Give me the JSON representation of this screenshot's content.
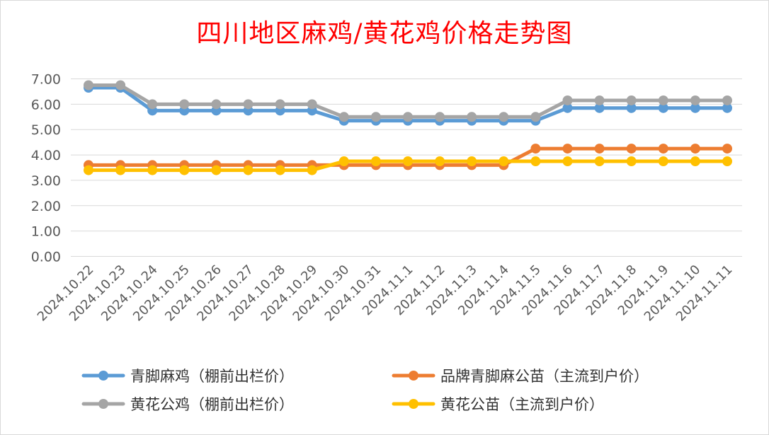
{
  "chart_data": {
    "type": "line",
    "title": "四川地区麻鸡/黄花鸡价格走势图",
    "xlabel": "",
    "ylabel": "",
    "ylim": [
      0,
      7
    ],
    "yticks": [
      "0.00",
      "1.00",
      "2.00",
      "3.00",
      "4.00",
      "5.00",
      "6.00",
      "7.00"
    ],
    "grid": true,
    "legend_position": "bottom",
    "categories": [
      "2024.10.22",
      "2024.10.23",
      "2024.10.24",
      "2024.10.25",
      "2024.10.26",
      "2024.10.27",
      "2024.10.28",
      "2024.10.29",
      "2024.10.30",
      "2024.10.31",
      "2024.11.1",
      "2024.11.2",
      "2024.11.3",
      "2024.11.4",
      "2024.11.5",
      "2024.11.6",
      "2024.11.7",
      "2024.11.8",
      "2024.11.9",
      "2024.11.10",
      "2024.11.11"
    ],
    "series": [
      {
        "name": "青脚麻鸡（棚前出栏价）",
        "color": "#5b9bd5",
        "values": [
          6.65,
          6.65,
          5.75,
          5.75,
          5.75,
          5.75,
          5.75,
          5.75,
          5.35,
          5.35,
          5.35,
          5.35,
          5.35,
          5.35,
          5.35,
          5.85,
          5.85,
          5.85,
          5.85,
          5.85,
          5.85
        ]
      },
      {
        "name": "品牌青脚麻公苗（主流到户价）",
        "color": "#ed7d31",
        "values": [
          3.6,
          3.6,
          3.6,
          3.6,
          3.6,
          3.6,
          3.6,
          3.6,
          3.6,
          3.6,
          3.6,
          3.6,
          3.6,
          3.6,
          4.25,
          4.25,
          4.25,
          4.25,
          4.25,
          4.25,
          4.25
        ]
      },
      {
        "name": "黄花公鸡（棚前出栏价）",
        "color": "#a5a5a5",
        "values": [
          6.75,
          6.75,
          6.0,
          6.0,
          6.0,
          6.0,
          6.0,
          6.0,
          5.5,
          5.5,
          5.5,
          5.5,
          5.5,
          5.5,
          5.5,
          6.15,
          6.15,
          6.15,
          6.15,
          6.15,
          6.15
        ]
      },
      {
        "name": "黄花公苗（主流到户价）",
        "color": "#ffc000",
        "values": [
          3.4,
          3.4,
          3.4,
          3.4,
          3.4,
          3.4,
          3.4,
          3.4,
          3.75,
          3.75,
          3.75,
          3.75,
          3.75,
          3.75,
          3.75,
          3.75,
          3.75,
          3.75,
          3.75,
          3.75,
          3.75
        ]
      }
    ]
  }
}
